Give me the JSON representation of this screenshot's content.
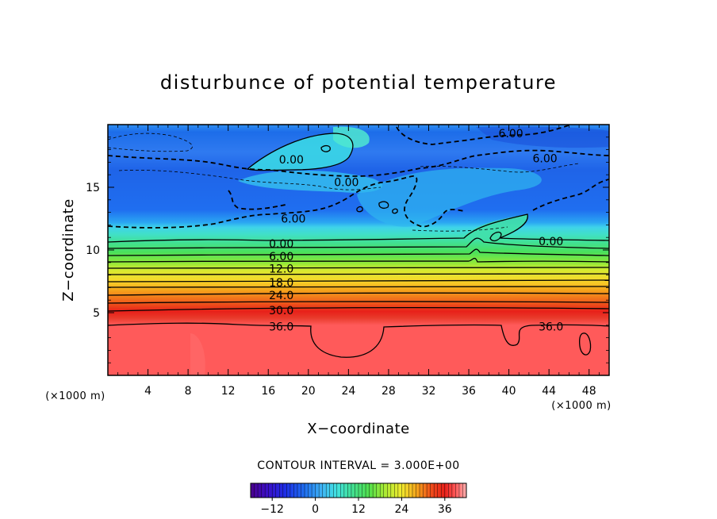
{
  "chart_data": {
    "type": "contour",
    "title": "disturbunce of potential temperature",
    "xlabel": "X−coordinate",
    "ylabel": "Z−coordinate",
    "x_unit": "(×1000 m)",
    "z_unit": "(×1000 m)",
    "xlim": [
      0,
      50
    ],
    "ylim": [
      0,
      20
    ],
    "x_ticks": [
      4,
      8,
      12,
      16,
      20,
      24,
      28,
      32,
      36,
      40,
      44,
      48
    ],
    "x_tick_labels": [
      "4",
      "8",
      "12",
      "16",
      "20",
      "24",
      "28",
      "32",
      "36",
      "40",
      "44",
      "48"
    ],
    "y_ticks": [
      5,
      10,
      15
    ],
    "y_tick_labels": [
      "5",
      "10",
      "15"
    ],
    "contour_interval_text": "CONTOUR INTERVAL = 3.000E+00",
    "contour_interval": 3,
    "level_range": [
      -18,
      42
    ],
    "colorbar_ticks": [
      -12,
      0,
      12,
      24,
      36
    ],
    "colorbar_tick_labels": [
      "−12",
      "0",
      "12",
      "24",
      "36"
    ],
    "colormap": [
      "#4b008c",
      "#1e2ee6",
      "#1f6ef0",
      "#3fb4f5",
      "#42e3e0",
      "#41e094",
      "#52e04c",
      "#a8ea35",
      "#f2ea2e",
      "#f5a41b",
      "#ef4a1b",
      "#e8201a",
      "#ff5a5a",
      "#ffb0b0"
    ],
    "level_bands_z": [
      {
        "z": 19.5,
        "value": -3
      },
      {
        "z": 17.0,
        "value": -6
      },
      {
        "z": 14.0,
        "value": -6
      },
      {
        "z": 12.0,
        "value": -3
      },
      {
        "z": 11.0,
        "value": 0
      },
      {
        "z": 10.5,
        "value": 0
      },
      {
        "z": 9.8,
        "value": 3
      },
      {
        "z": 9.3,
        "value": 6
      },
      {
        "z": 8.8,
        "value": 9
      },
      {
        "z": 8.3,
        "value": 12
      },
      {
        "z": 7.7,
        "value": 15
      },
      {
        "z": 7.2,
        "value": 18
      },
      {
        "z": 6.7,
        "value": 21
      },
      {
        "z": 6.2,
        "value": 24
      },
      {
        "z": 5.6,
        "value": 27
      },
      {
        "z": 5.1,
        "value": 30
      },
      {
        "z": 4.6,
        "value": 33
      },
      {
        "z": 4.1,
        "value": 36
      },
      {
        "z": 3.8,
        "value": 37
      },
      {
        "z": 0.0,
        "value": 37
      }
    ],
    "contour_labels": [
      {
        "text": "6.00",
        "x": 40.2,
        "z": 19.3
      },
      {
        "text": "6.00",
        "x": 43.6,
        "z": 17.3
      },
      {
        "text": "0.00",
        "x": 18.3,
        "z": 17.2
      },
      {
        "text": "0.00",
        "x": 23.8,
        "z": 15.4
      },
      {
        "text": "6.00",
        "x": 18.5,
        "z": 12.5
      },
      {
        "text": "0.00",
        "x": 44.2,
        "z": 10.7
      },
      {
        "text": "0.00",
        "x": 17.3,
        "z": 10.5
      },
      {
        "text": "6.00",
        "x": 17.3,
        "z": 9.5
      },
      {
        "text": "12.0",
        "x": 17.3,
        "z": 8.5
      },
      {
        "text": "18.0",
        "x": 17.3,
        "z": 7.4
      },
      {
        "text": "24.0",
        "x": 17.3,
        "z": 6.4
      },
      {
        "text": "30.0",
        "x": 17.3,
        "z": 5.2
      },
      {
        "text": "36.0",
        "x": 17.3,
        "z": 3.9
      },
      {
        "text": "36.0",
        "x": 44.2,
        "z": 3.9
      }
    ],
    "grid": false,
    "legend": "colorbar-bottom"
  }
}
